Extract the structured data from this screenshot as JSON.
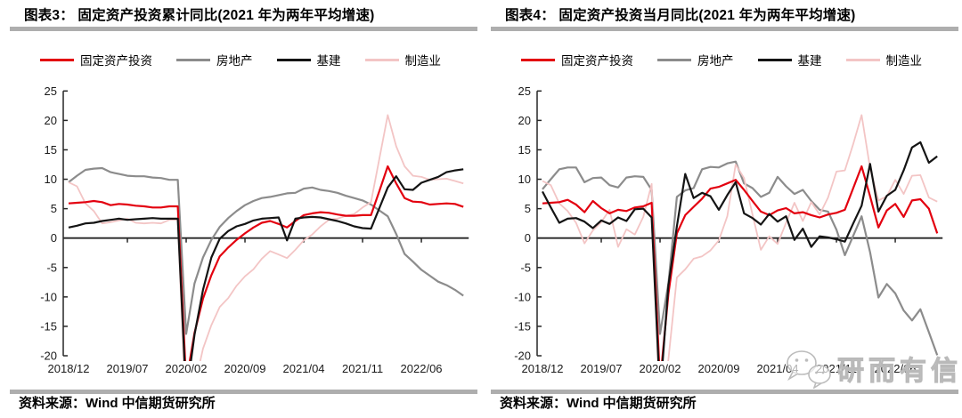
{
  "page": {
    "background": "#ffffff"
  },
  "colors": {
    "fai": "#e3000f",
    "real_estate": "#8c8c8c",
    "infra": "#141414",
    "manufacturing": "#f3c5c5",
    "divider": "#aeaeae",
    "axis": "#262626",
    "watermark": "#bebebe"
  },
  "watermark": {
    "icon": "wechat-bubbles-icon",
    "text": "研而有信"
  },
  "chart_data": [
    {
      "type": "line",
      "title": "图表3：  固定资产投资累计同比(2021 年为两年平均增速)",
      "source_note": "资料来源：Wind  中信期货研究所",
      "x_start": "2018/12",
      "x_end": "2022/11",
      "x_tick_labels": [
        "2018/12",
        "2019/07",
        "2020/02",
        "2020/09",
        "2021/04",
        "2021/11",
        "2022/06"
      ],
      "ylim": [
        -20,
        25
      ],
      "ytick_step": 5,
      "grid": false,
      "legend_position": "top",
      "series": [
        {
          "key": "fixed-asset-investment",
          "name": "固定资产投资",
          "color": "#e3000f",
          "width": 2.2,
          "values": [
            5.9,
            6.0,
            6.1,
            6.3,
            6.1,
            5.6,
            5.8,
            5.7,
            5.5,
            5.4,
            5.2,
            5.2,
            5.4,
            5.4,
            -24.5,
            -16.1,
            -10.3,
            -6.3,
            -3.1,
            -1.6,
            -0.3,
            0.8,
            1.8,
            2.6,
            2.9,
            2.4,
            1.8,
            2.9,
            3.9,
            4.2,
            4.4,
            4.3,
            4.0,
            3.8,
            3.8,
            3.9,
            3.9,
            8.0,
            12.2,
            9.3,
            6.8,
            6.2,
            6.1,
            5.7,
            5.8,
            5.9,
            5.8,
            5.3
          ]
        },
        {
          "key": "real-estate",
          "name": "房地产",
          "color": "#8c8c8c",
          "width": 2.2,
          "values": [
            9.5,
            10.6,
            11.6,
            11.8,
            11.9,
            11.2,
            10.9,
            10.6,
            10.5,
            10.5,
            10.3,
            10.2,
            9.9,
            9.9,
            -16.3,
            -7.7,
            -3.3,
            -0.3,
            1.9,
            3.4,
            4.6,
            5.6,
            6.3,
            6.8,
            7.0,
            7.3,
            7.6,
            7.7,
            8.4,
            8.6,
            8.2,
            8.0,
            7.7,
            7.2,
            6.8,
            6.4,
            5.7,
            4.7,
            3.7,
            0.7,
            -2.7,
            -4.0,
            -5.4,
            -6.4,
            -7.4,
            -8.0,
            -8.8,
            -9.8
          ]
        },
        {
          "key": "infrastructure",
          "name": "基建",
          "color": "#141414",
          "width": 2.2,
          "values": [
            1.8,
            2.1,
            2.5,
            2.6,
            2.9,
            3.1,
            3.3,
            3.1,
            3.2,
            3.3,
            3.4,
            3.3,
            3.3,
            3.3,
            -26.9,
            -16.4,
            -8.8,
            -3.3,
            -0.1,
            1.2,
            2.0,
            2.4,
            3.0,
            3.3,
            3.4,
            3.5,
            -0.4,
            3.3,
            3.5,
            3.6,
            3.5,
            3.2,
            2.9,
            2.5,
            2.0,
            1.7,
            1.6,
            5.1,
            8.6,
            10.5,
            8.3,
            8.2,
            9.4,
            9.9,
            10.4,
            11.2,
            11.5,
            11.7
          ]
        },
        {
          "key": "manufacturing",
          "name": "制造业",
          "color": "#f3c5c5",
          "width": 1.8,
          "values": [
            9.5,
            8.8,
            5.9,
            4.6,
            2.5,
            2.7,
            3.0,
            3.3,
            2.6,
            2.5,
            2.6,
            2.5,
            3.1,
            3.1,
            -31.5,
            -25.2,
            -18.8,
            -14.8,
            -11.7,
            -10.2,
            -8.1,
            -6.5,
            -5.3,
            -3.5,
            -2.2,
            -2.8,
            -3.4,
            -2.0,
            -0.4,
            0.6,
            2.0,
            3.1,
            3.3,
            3.8,
            4.1,
            5.2,
            6.1,
            13.5,
            20.9,
            15.6,
            12.2,
            10.6,
            10.4,
            9.9,
            10.0,
            10.1,
            9.7,
            9.3
          ]
        }
      ]
    },
    {
      "type": "line",
      "title": "图表4：  固定资产投资当月同比(2021 年为两年平均增速)",
      "source_note": "资料来源：Wind  中信期货研究所",
      "x_start": "2018/12",
      "x_end": "2022/11",
      "x_tick_labels": [
        "2018/12",
        "2019/07",
        "2020/02",
        "2020/09",
        "2021/04",
        "2021/11",
        "2022/06"
      ],
      "ylim": [
        -20,
        25
      ],
      "ytick_step": 5,
      "grid": false,
      "legend_position": "top",
      "series": [
        {
          "key": "fixed-asset-investment",
          "name": "固定资产投资",
          "color": "#e3000f",
          "width": 2.2,
          "values": [
            5.9,
            6.0,
            6.1,
            6.5,
            5.7,
            4.4,
            6.3,
            5.1,
            4.2,
            4.8,
            4.6,
            5.2,
            5.4,
            6.0,
            -24.5,
            -9.5,
            0.8,
            3.9,
            5.3,
            6.7,
            8.4,
            8.7,
            9.3,
            9.9,
            8.2,
            6.3,
            4.5,
            3.9,
            4.7,
            5.1,
            4.2,
            4.4,
            3.9,
            3.5,
            4.0,
            4.3,
            4.8,
            8.5,
            12.2,
            7.1,
            1.8,
            4.7,
            5.8,
            3.6,
            6.4,
            6.6,
            5.0,
            0.8
          ]
        },
        {
          "key": "real-estate",
          "name": "房地产",
          "color": "#8c8c8c",
          "width": 2.2,
          "values": [
            8.3,
            10.0,
            11.7,
            12.0,
            12.0,
            9.5,
            10.2,
            10.3,
            9.0,
            8.6,
            10.3,
            10.5,
            10.4,
            8.2,
            -16.3,
            -7.7,
            7.0,
            8.1,
            8.5,
            11.7,
            12.1,
            12.0,
            12.7,
            13.0,
            9.3,
            8.5,
            7.0,
            7.7,
            10.4,
            8.8,
            7.5,
            8.2,
            6.3,
            4.8,
            4.5,
            1.4,
            -2.9,
            0.4,
            3.7,
            -2.4,
            -10.1,
            -7.8,
            -9.4,
            -12.3,
            -14.0,
            -12.1,
            -16.0,
            -19.9
          ]
        },
        {
          "key": "infrastructure",
          "name": "基建",
          "color": "#141414",
          "width": 2.2,
          "values": [
            7.9,
            5.2,
            2.6,
            3.3,
            3.4,
            2.8,
            1.7,
            3.0,
            2.4,
            3.5,
            2.9,
            4.9,
            5.0,
            3.5,
            -26.9,
            -8.0,
            2.0,
            10.9,
            6.8,
            7.7,
            7.1,
            4.8,
            7.3,
            9.5,
            4.2,
            3.4,
            2.3,
            4.1,
            2.8,
            3.7,
            -0.3,
            1.6,
            -1.5,
            0.3,
            0.1,
            -0.2,
            -0.6,
            2.5,
            5.5,
            12.6,
            4.5,
            7.2,
            8.2,
            11.5,
            15.4,
            16.3,
            12.8,
            13.9
          ]
        },
        {
          "key": "manufacturing",
          "name": "制造业",
          "color": "#f3c5c5",
          "width": 1.8,
          "values": [
            9.7,
            9.0,
            5.9,
            4.6,
            2.6,
            -0.9,
            1.3,
            2.7,
            4.8,
            -1.5,
            1.5,
            0.6,
            3.6,
            9.2,
            -31.5,
            -20.6,
            -6.7,
            -5.3,
            -3.5,
            -3.1,
            -2.1,
            -0.4,
            3.7,
            12.5,
            10.2,
            4.0,
            -2.0,
            0.3,
            -1.0,
            2.6,
            6.0,
            2.9,
            6.1,
            4.0,
            6.9,
            11.3,
            11.5,
            16.0,
            20.9,
            11.9,
            6.4,
            7.1,
            9.9,
            7.5,
            10.6,
            10.7,
            6.9,
            6.2
          ]
        }
      ]
    }
  ]
}
